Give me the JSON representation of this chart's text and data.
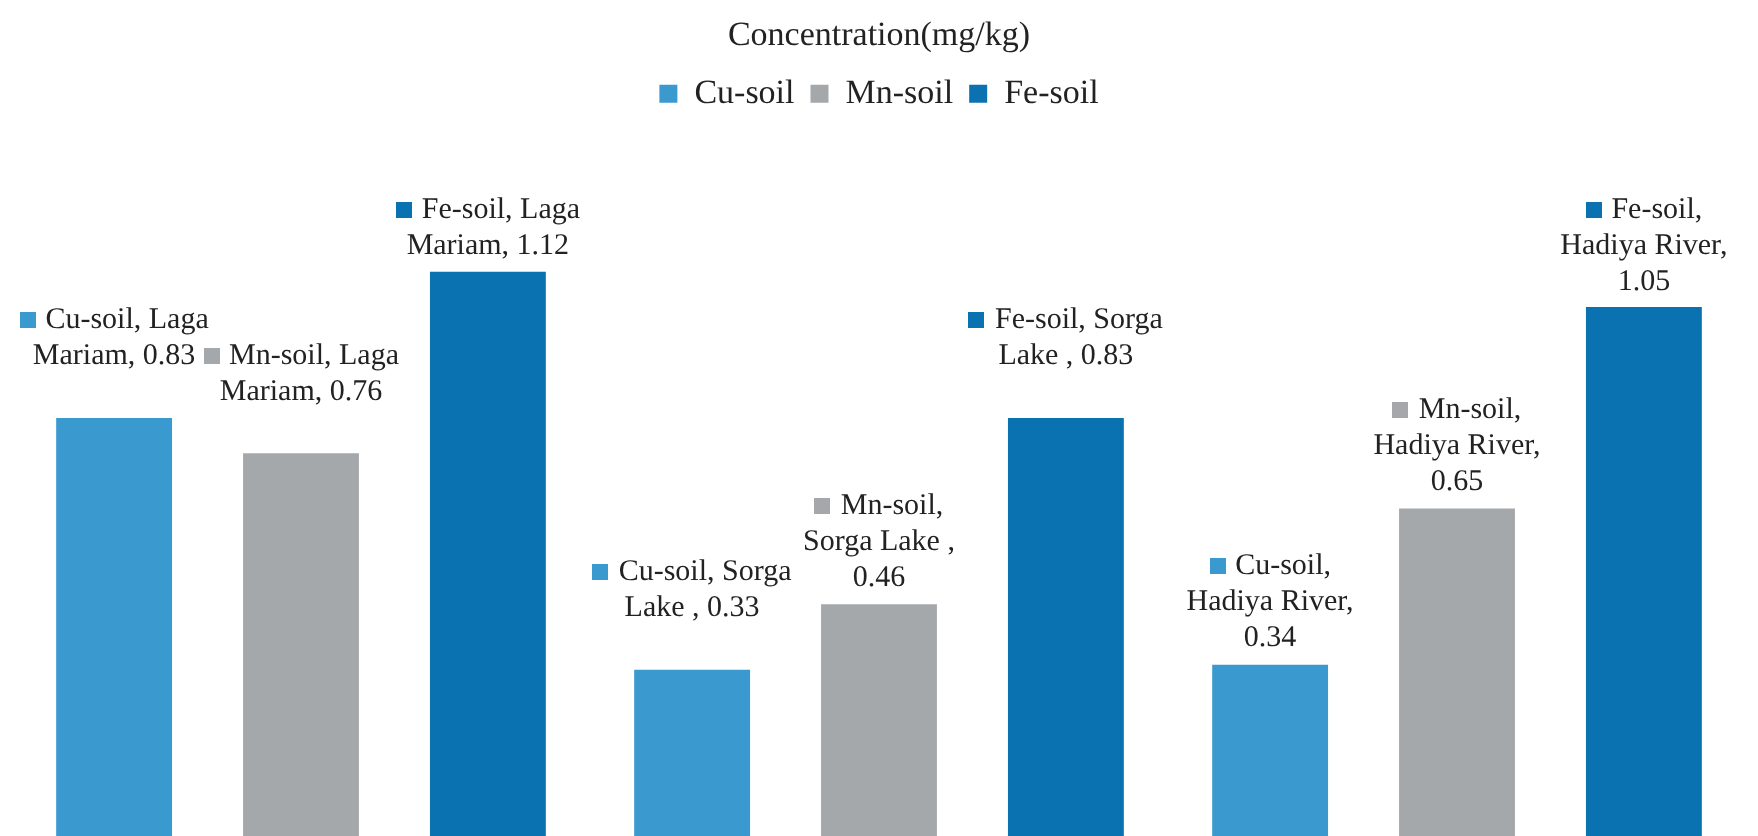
{
  "chart_data": {
    "type": "bar",
    "title": "Concentration(mg/kg)",
    "categories": [
      null,
      null,
      null
    ],
    "series": [
      {
        "name": "Cu-soil",
        "color": "#3a9ad0",
        "values": [
          0.83,
          0.33,
          0.34
        ],
        "value_labels": [
          "Cu-soil, Laga Mariam, 0.83",
          "Cu-soil, Sorga Lake , 0.33",
          "Cu-soil, Hadiya River, 0.34"
        ]
      },
      {
        "name": "Mn-soil",
        "color": "#a5a8ab",
        "values": [
          0.76,
          0.46,
          0.65
        ],
        "value_labels": [
          "Mn-soil, Laga Mariam, 0.76",
          "Mn-soil, Sorga Lake , 0.46",
          "Mn-soil, Hadiya River, 0.65"
        ]
      },
      {
        "name": "Fe-soil",
        "color": "#0a72b0",
        "values": [
          1.12,
          0.83,
          1.05
        ],
        "value_labels": [
          "Fe-soil, Laga Mariam, 1.12",
          "Fe-soil, Sorga Lake , 0.83",
          "Fe-soil, Hadiya River, 1.05"
        ]
      }
    ],
    "tick_labels": false,
    "legend": "top"
  }
}
